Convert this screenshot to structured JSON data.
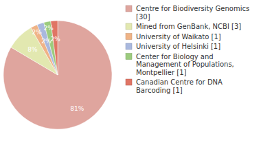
{
  "chart_data": {
    "type": "pie",
    "categories": [
      "Centre for Biodiversity Genomics [30]",
      "Mined from GenBank, NCBI [3]",
      "University of Waikato [1]",
      "University of Helsinki [1]",
      "Center for Biology and Management of Populations, Montpellier [1]",
      "Canadian Centre for DNA Barcoding [1]"
    ],
    "values": [
      81,
      8,
      2,
      2,
      2,
      2
    ],
    "value_labels": [
      "81%",
      "8%",
      "2%",
      "2%",
      "2%",
      "2%"
    ],
    "colors": [
      "#dfa59e",
      "#e2e8b0",
      "#efb386",
      "#a9b8de",
      "#9ccb7e",
      "#e07565"
    ],
    "data_labels": true,
    "legend": "right"
  }
}
